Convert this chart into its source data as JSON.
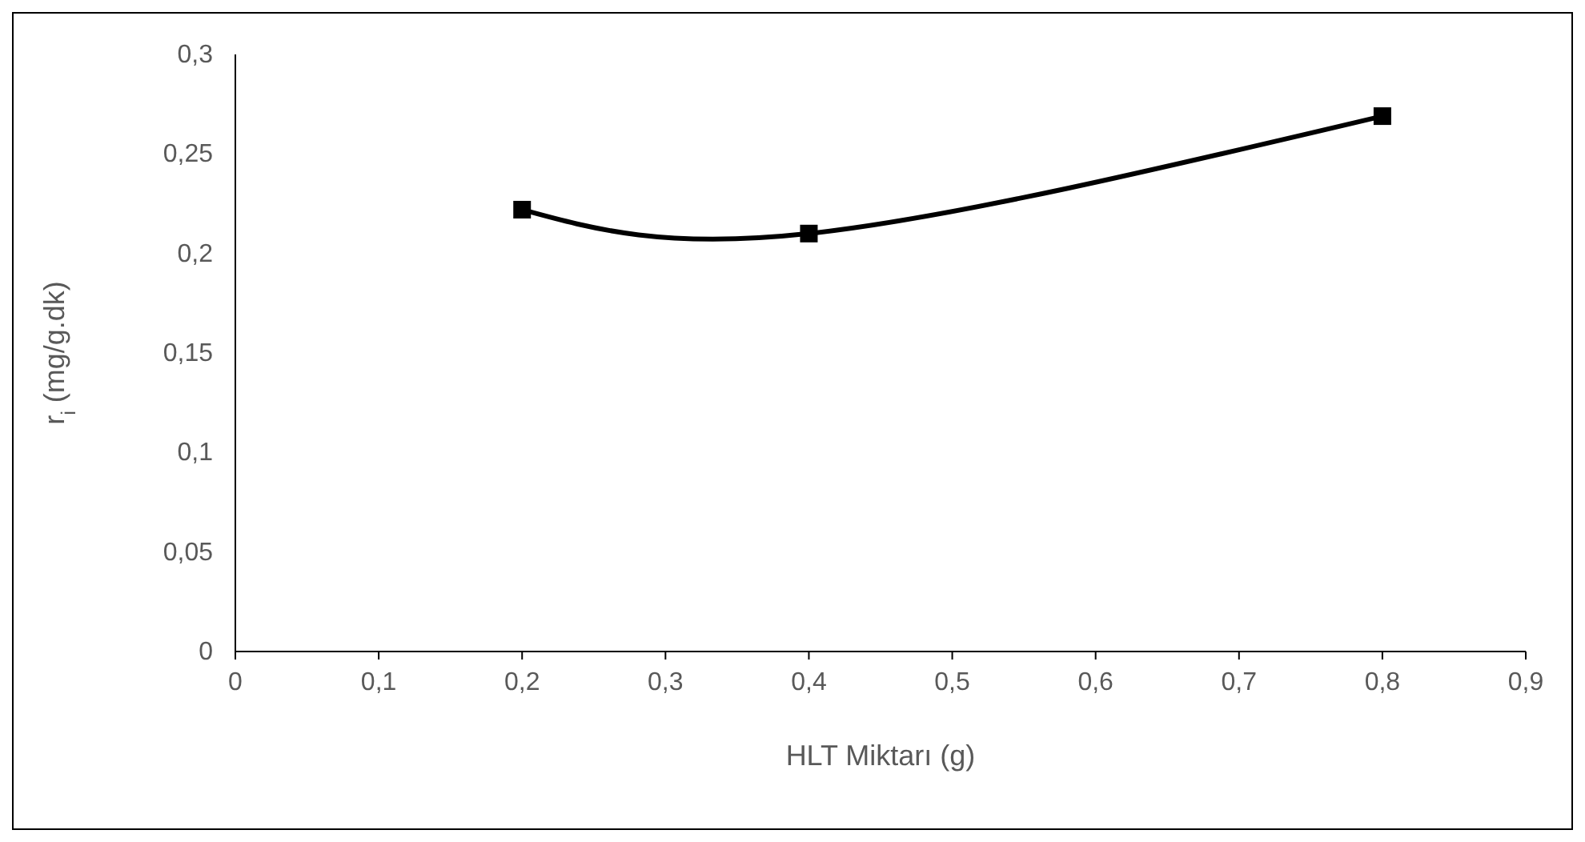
{
  "chart_data": {
    "type": "line",
    "xlabel": "HLT Miktarı (g)",
    "ylabel": "r$_{i}$ (mg/g.dk)",
    "x": [
      0.2,
      0.4,
      0.8
    ],
    "series": [
      {
        "color": "#000000",
        "values": [
          0.222,
          0.21,
          0.269
        ]
      }
    ],
    "xlim": [
      0,
      0.9
    ],
    "ylim": [
      0,
      0.3
    ],
    "xticks": [
      0,
      {
        "value": 0.1,
        "label": "0,1"
      },
      {
        "value": 0.2,
        "label": "0,2"
      },
      {
        "value": 0.3,
        "label": "0,3"
      },
      {
        "value": 0.4,
        "label": "0,4"
      },
      {
        "value": 0.5,
        "label": "0,5"
      },
      {
        "value": 0.6,
        "label": "0,6"
      },
      {
        "value": 0.7,
        "label": "0,7"
      },
      {
        "value": 0.8,
        "label": "0,8"
      },
      {
        "value": 0.9,
        "label": "0,9"
      }
    ],
    "yticks": [
      0,
      {
        "value": 0.05,
        "label": "0,05"
      },
      {
        "value": 0.1,
        "label": "0,1"
      },
      {
        "value": 0.15,
        "label": "0,15"
      },
      {
        "value": 0.2,
        "label": "0,2"
      },
      {
        "value": 0.25,
        "label": "0,25"
      },
      {
        "value": 0.3,
        "label": "0,3"
      }
    ],
    "marker": "square",
    "line_style": "solid",
    "grid": false
  }
}
